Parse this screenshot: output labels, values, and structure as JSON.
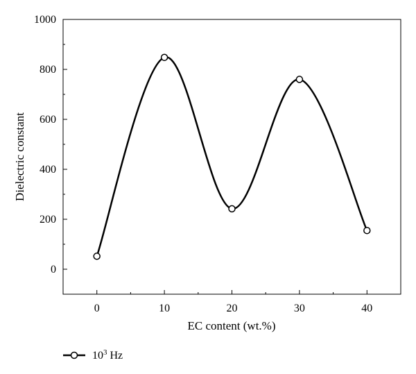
{
  "chart_data": {
    "type": "line",
    "title": "",
    "xlabel": "EC content (wt.%)",
    "ylabel": "Dielectric constant",
    "xlim": [
      -5,
      45
    ],
    "ylim": [
      -100,
      1000
    ],
    "xticks": [
      0,
      10,
      20,
      30,
      40
    ],
    "yticks": [
      0,
      200,
      400,
      600,
      800,
      1000
    ],
    "smooth": true,
    "grid": false,
    "legend_position": "bottom-left",
    "series": [
      {
        "name": "10³ Hz",
        "marker": "open-circle",
        "color": "#000000",
        "x": [
          0,
          10,
          20,
          30,
          40
        ],
        "y": [
          52,
          848,
          242,
          760,
          155
        ]
      }
    ]
  },
  "legend": {
    "label_base": "10",
    "label_sup": "3",
    "label_unit": " Hz"
  }
}
